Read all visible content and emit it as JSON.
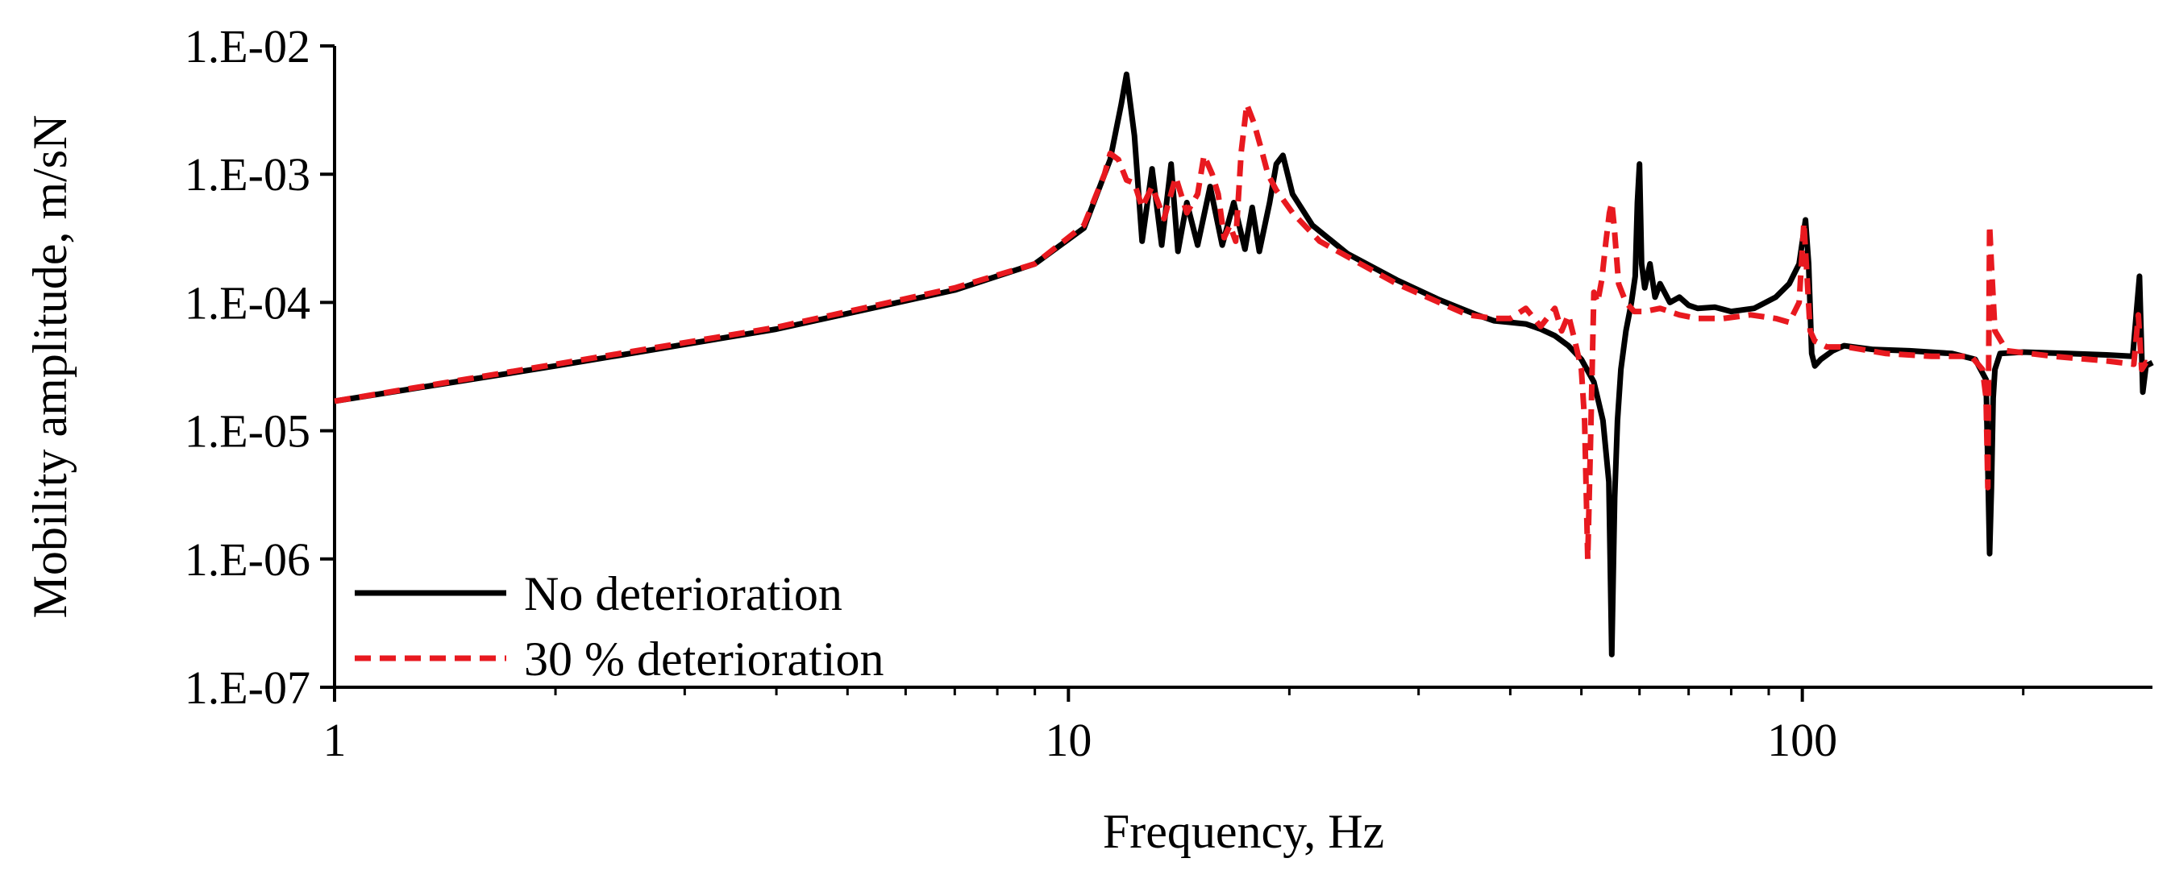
{
  "chart_data": {
    "type": "line",
    "title": "",
    "xlabel": "Frequency, Hz",
    "ylabel": "Mobility amplitude, m/sN",
    "xscale": "log",
    "yscale": "log",
    "xlim": [
      1,
      300
    ],
    "ylim": [
      1e-07,
      0.01
    ],
    "grid": false,
    "legend_position": "bottom-left",
    "x_ticks": [
      {
        "value": 1,
        "label": "1"
      },
      {
        "value": 10,
        "label": "10"
      },
      {
        "value": 100,
        "label": "100"
      }
    ],
    "y_ticks": [
      {
        "value": 1e-07,
        "label": "1.E-07"
      },
      {
        "value": 1e-06,
        "label": "1.E-06"
      },
      {
        "value": 1e-05,
        "label": "1.E-05"
      },
      {
        "value": 0.0001,
        "label": "1.E-04"
      },
      {
        "value": 0.001,
        "label": "1.E-03"
      },
      {
        "value": 0.01,
        "label": "1.E-02"
      }
    ],
    "series": [
      {
        "name": "No deterioration",
        "color": "#000000",
        "style": "solid",
        "x": [
          1,
          2,
          4,
          7,
          9,
          10.5,
          11.4,
          11.8,
          12.0,
          12.3,
          12.6,
          13.0,
          13.4,
          13.8,
          14.1,
          14.5,
          15.0,
          15.6,
          16.2,
          16.8,
          17.4,
          17.8,
          18.2,
          18.8,
          19.2,
          19.6,
          20.2,
          21.5,
          24,
          28,
          32,
          36,
          38,
          40,
          42,
          44,
          46,
          48,
          50,
          52,
          53.5,
          54.5,
          55.0,
          55.5,
          56.0,
          56.6,
          57.5,
          58.5,
          59.2,
          59.6,
          60.0,
          60.4,
          61,
          62,
          63,
          64,
          66,
          68,
          70,
          72,
          76,
          80,
          86,
          92,
          96,
          99,
          101,
          102,
          103,
          104,
          106,
          110,
          114,
          125,
          140,
          160,
          172,
          178,
          180,
          181,
          182,
          183,
          186,
          200,
          230,
          260,
          282,
          288,
          291,
          294,
          300
        ],
        "y": [
          1.7e-05,
          3.2e-05,
          6.2e-05,
          0.000125,
          0.0002,
          0.00038,
          0.0013,
          0.0035,
          0.006,
          0.002,
          0.0003,
          0.0011,
          0.00028,
          0.0012,
          0.00025,
          0.0006,
          0.00028,
          0.0008,
          0.00028,
          0.0006,
          0.00026,
          0.00055,
          0.00025,
          0.0006,
          0.0012,
          0.0014,
          0.0007,
          0.0004,
          0.00024,
          0.00015,
          0.000105,
          8e-05,
          7.2e-05,
          7e-05,
          6.8e-05,
          6.2e-05,
          5.5e-05,
          4.6e-05,
          3.6e-05,
          2.4e-05,
          1.2e-05,
          4e-06,
          1.8e-07,
          3e-06,
          1.2e-05,
          3e-05,
          6e-05,
          0.0001,
          0.00016,
          0.0006,
          0.0012,
          0.0002,
          0.00013,
          0.0002,
          0.00011,
          0.00014,
          0.0001,
          0.00011,
          9.5e-05,
          9e-05,
          9.2e-05,
          8.5e-05,
          9e-05,
          0.00011,
          0.00014,
          0.0002,
          0.00044,
          0.0002,
          4e-05,
          3.2e-05,
          3.6e-05,
          4.2e-05,
          4.6e-05,
          4.3e-05,
          4.2e-05,
          4e-05,
          3.6e-05,
          2.5e-05,
          1.1e-06,
          3.5e-06,
          1.8e-05,
          3e-05,
          4e-05,
          4.1e-05,
          4e-05,
          3.9e-05,
          3.8e-05,
          0.00016,
          2e-05,
          3.2e-05,
          3.4e-05
        ]
      },
      {
        "name": "30 % deterioration",
        "color": "#e8191f",
        "style": "dashed",
        "x": [
          1,
          2,
          4,
          7,
          9,
          10.5,
          11.2,
          11.4,
          11.7,
          12.0,
          12.3,
          12.6,
          13.0,
          13.5,
          14.0,
          14.5,
          15.0,
          15.3,
          15.7,
          16.0,
          16.3,
          16.6,
          16.9,
          17.2,
          17.5,
          17.9,
          18.3,
          18.7,
          19.2,
          20.2,
          22,
          25,
          28,
          32,
          35,
          38,
          40,
          42,
          44,
          46,
          47,
          48,
          49,
          50,
          50.5,
          51.0,
          51.5,
          52.0,
          52.6,
          53.3,
          54.0,
          54.6,
          55.0,
          55.4,
          56.2,
          57.5,
          59,
          61,
          64,
          68,
          72,
          78,
          85,
          92,
          96,
          99,
          100.5,
          101.5,
          102.5,
          104,
          108,
          115,
          130,
          150,
          170,
          176,
          178,
          179,
          180,
          181,
          183,
          190,
          220,
          260,
          283,
          287,
          290,
          294,
          300
        ],
        "y": [
          1.7e-05,
          3.3e-05,
          6.4e-05,
          0.00013,
          0.0002,
          0.0004,
          0.001,
          0.00145,
          0.0013,
          0.0009,
          0.00085,
          0.00055,
          0.0008,
          0.00045,
          0.00095,
          0.0005,
          0.0007,
          0.0014,
          0.001,
          0.0007,
          0.00032,
          0.0004,
          0.0003,
          0.0015,
          0.0035,
          0.0025,
          0.0016,
          0.001,
          0.00075,
          0.0005,
          0.0003,
          0.0002,
          0.00014,
          0.0001,
          8e-05,
          7.5e-05,
          7.5e-05,
          9e-05,
          6.5e-05,
          9e-05,
          6e-05,
          8e-05,
          5e-05,
          3e-05,
          1.2e-05,
          1e-06,
          1e-05,
          0.00012,
          0.0001,
          0.00015,
          0.0003,
          0.0005,
          0.0006,
          0.0004,
          0.00014,
          0.0001,
          8.5e-05,
          8.5e-05,
          9e-05,
          8e-05,
          7.5e-05,
          7.5e-05,
          8e-05,
          7.5e-05,
          7e-05,
          0.0001,
          0.00042,
          0.00016,
          6e-05,
          5e-05,
          4.5e-05,
          4.5e-05,
          4e-05,
          3.8e-05,
          3.8e-05,
          3e-05,
          1.8e-05,
          3.6e-06,
          0.0004,
          0.0002,
          6e-05,
          4.2e-05,
          3.8e-05,
          3.5e-05,
          3.3e-05,
          8e-05,
          3e-05,
          3.4e-05,
          3.3e-05
        ]
      }
    ]
  }
}
